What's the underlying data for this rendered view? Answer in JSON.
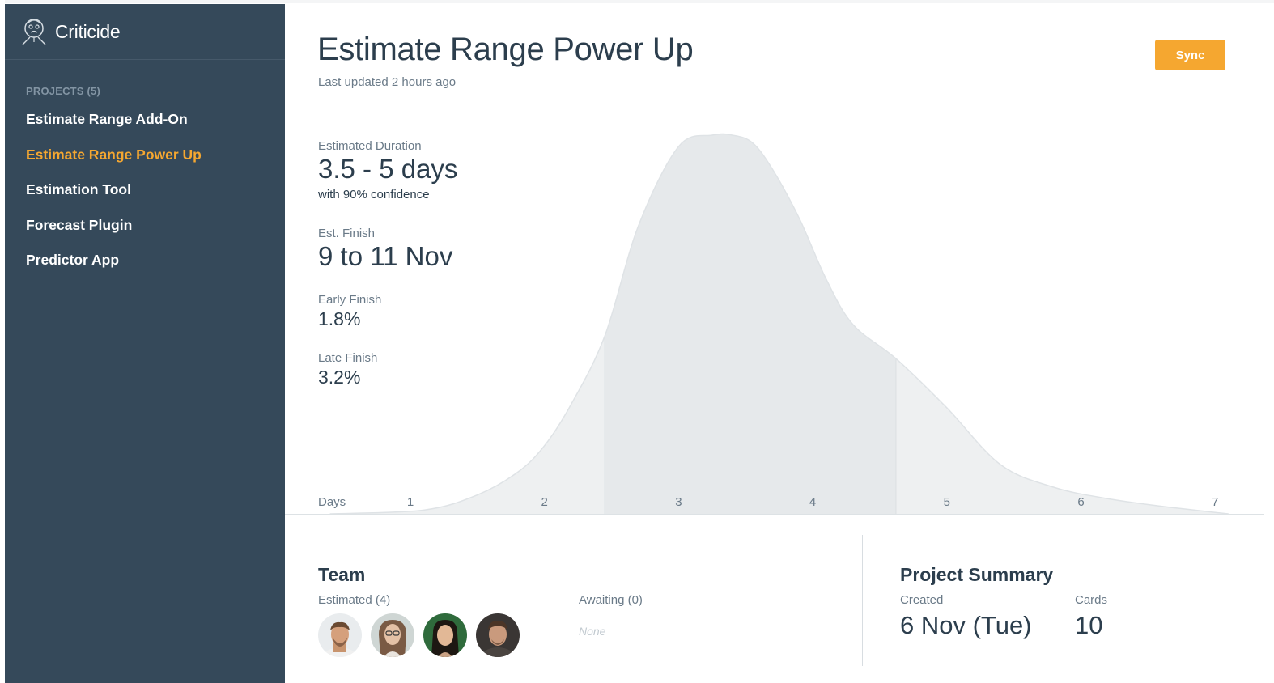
{
  "app": {
    "name": "Criticide",
    "logo_icon": "critic-face-logo-icon"
  },
  "sidebar": {
    "projects_heading": "PROJECTS (5)",
    "items": [
      {
        "label": "Estimate Range Add-On",
        "active": false
      },
      {
        "label": "Estimate Range Power Up",
        "active": true
      },
      {
        "label": "Estimation Tool",
        "active": false
      },
      {
        "label": "Forecast Plugin",
        "active": false
      },
      {
        "label": "Predictor App",
        "active": false
      }
    ]
  },
  "header": {
    "title": "Estimate Range Power Up",
    "last_updated": "Last updated 2 hours ago",
    "sync_label": "Sync"
  },
  "stats": {
    "duration": {
      "label": "Estimated Duration",
      "value": "3.5 - 5 days",
      "sub": "with 90% confidence"
    },
    "finish": {
      "label": "Est. Finish",
      "value": "9 to 11 Nov"
    },
    "early": {
      "label": "Early Finish",
      "value": "1.8%"
    },
    "late": {
      "label": "Late Finish",
      "value": "3.2%"
    }
  },
  "chart_data": {
    "type": "area",
    "xlabel": "Days",
    "x_ticks": [
      "1",
      "2",
      "3",
      "4",
      "5",
      "6",
      "7"
    ],
    "xlim": [
      0.4,
      7.2
    ],
    "highlight_range": [
      2.45,
      4.62
    ],
    "curve": {
      "x": [
        0.4,
        1.1,
        1.5,
        1.8,
        2.0,
        2.2,
        2.45,
        2.7,
        3.0,
        3.25,
        3.4,
        3.55,
        3.7,
        3.9,
        4.1,
        4.3,
        4.62,
        5.0,
        5.4,
        5.8,
        6.2,
        6.6,
        7.1
      ],
      "y": [
        0.0,
        0.01,
        0.05,
        0.11,
        0.18,
        0.29,
        0.47,
        0.76,
        0.97,
        1.0,
        1.0,
        0.98,
        0.91,
        0.78,
        0.62,
        0.5,
        0.41,
        0.28,
        0.13,
        0.07,
        0.04,
        0.02,
        0.0
      ]
    },
    "colors": {
      "fill": "#eef0f1",
      "highlight": "#e6e9eb",
      "stroke": "#dfe3e6",
      "axis": "#dde2e5"
    }
  },
  "team": {
    "title": "Team",
    "estimated_label": "Estimated (4)",
    "awaiting_label": "Awaiting (0)",
    "awaiting_none": "None",
    "avatars": [
      "avatar-1",
      "avatar-2",
      "avatar-3",
      "avatar-4"
    ]
  },
  "summary": {
    "title": "Project Summary",
    "created_label": "Created",
    "created_value": "6 Nov (Tue)",
    "cards_label": "Cards",
    "cards_value": "10"
  }
}
